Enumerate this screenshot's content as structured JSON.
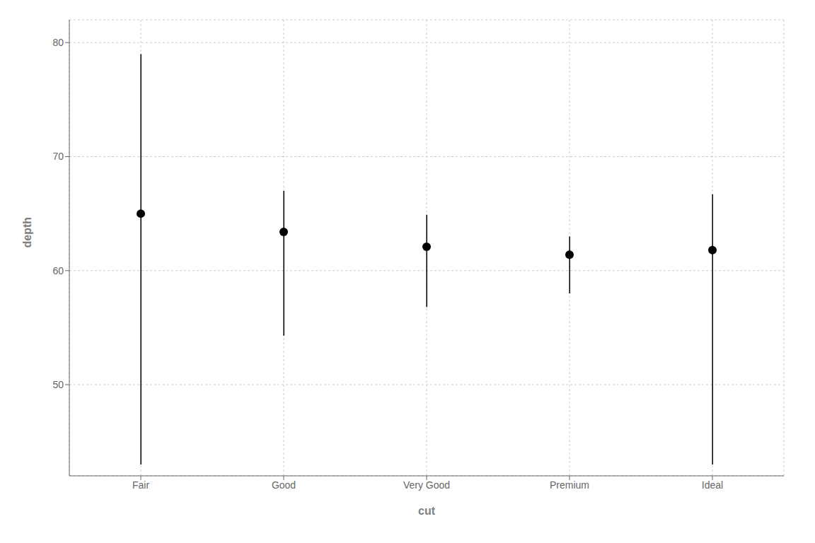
{
  "chart_data": {
    "type": "range",
    "categories": [
      "Fair",
      "Good",
      "Very Good",
      "Premium",
      "Ideal"
    ],
    "medians": [
      65.0,
      63.4,
      62.1,
      61.4,
      61.8
    ],
    "mins": [
      43.0,
      54.3,
      56.8,
      58.0,
      43.0
    ],
    "maxs": [
      79.0,
      67.0,
      64.9,
      63.0,
      66.7
    ],
    "xlabel": "cut",
    "ylabel": "depth",
    "ylim": [
      42,
      82
    ],
    "yticks": [
      50,
      60,
      70,
      80
    ],
    "grid": true,
    "color": "black"
  }
}
